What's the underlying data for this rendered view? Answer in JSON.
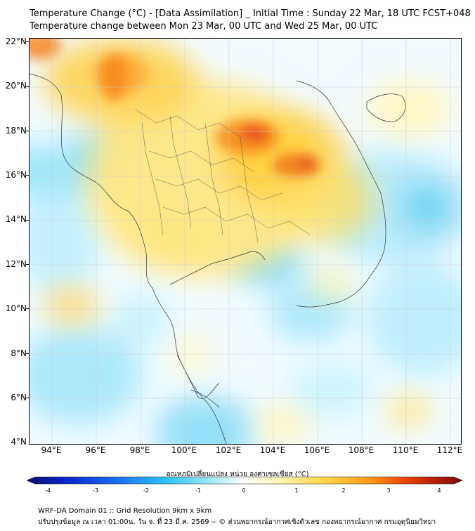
{
  "header": {
    "title": "Temperature Change (°C) - [Data Assimilation] _ Initial Time : Sunday 22 Mar, 18 UTC FCST+048",
    "subtitle": "Temperature change between Mon 23 Mar, 00 UTC and Wed 25 Mar, 00 UTC"
  },
  "map": {
    "lat_labels": [
      "22°N",
      "20°N",
      "18°N",
      "16°N",
      "14°N",
      "12°N",
      "10°N",
      "8°N",
      "6°N",
      "4°N"
    ],
    "lon_labels": [
      "94°E",
      "96°E",
      "98°E",
      "100°E",
      "102°E",
      "104°E",
      "106°E",
      "108°E",
      "110°E",
      "112°E"
    ]
  },
  "colorbar": {
    "label": "อุณหภูมิเปลี่ยนแปลง หน่วย องศาเซลเซียส (°C)",
    "ticks": [
      "-4",
      "-3",
      "-2",
      "-1",
      "0",
      "1",
      "2",
      "3",
      "4"
    ],
    "min": -4,
    "max": 4
  },
  "footer": {
    "line1": "WRF-DA Domain 01 :: Grid Resolution 9km x 9km",
    "line2": "ปรับปรุงข้อมูล ณ เวลา 01:00น. วัน จ. ที่ 23 มี.ค. 2569 -- © ส่วนพยากรณ์อากาศเชิงตัวเลข กองพยากรณ์อากาศ กรมอุตุนิยมวิทยา"
  },
  "colors": {
    "cold": "#00b4f0",
    "neutral": "#ffffff",
    "warm": "#f5c400",
    "hot": "#e53a00"
  }
}
